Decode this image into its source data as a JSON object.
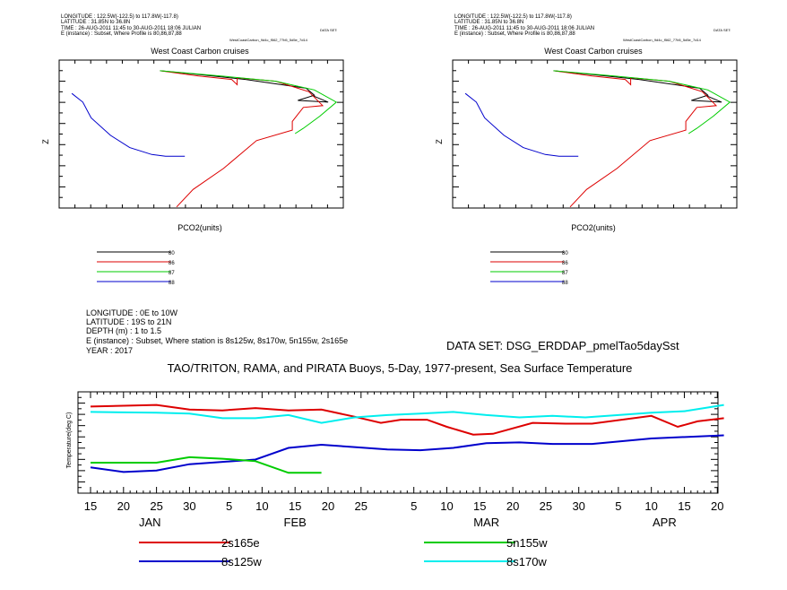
{
  "colors": {
    "black": "#000000",
    "red": "#dd0000",
    "green": "#00cc00",
    "blue": "#0000cc",
    "cyan": "#00eeee"
  },
  "chart_data": [
    {
      "type": "line",
      "title": "West Coast Carbon cruises",
      "header": [
        "LONGITUDE : 122.5W(-122.5) to 117.8W(-117.8)",
        "LATITUDE : 31.85N to 36.8N",
        "TIME : 26-AUG-2011 11:45 to 30-AUG-2011 18:06 JULIAN",
        "E (instance) : Subset, Where Profile is 80,86,87,88"
      ],
      "header_dataset": "DATA SET:",
      "header_dataset_name": "WestCoastCarbon_9d4c_f562_77b5_5d5e_7d14",
      "xlabel": "PCO2(units)",
      "ylabel": "Z",
      "series": [
        {
          "name": "80",
          "color": "black",
          "points": [
            [
              0.34,
              0.02
            ],
            [
              0.47,
              0.04
            ],
            [
              0.65,
              0.07
            ],
            [
              0.87,
              0.12
            ],
            [
              0.9,
              0.16
            ],
            [
              0.84,
              0.19
            ],
            [
              0.95,
              0.2
            ],
            [
              0.89,
              0.16
            ]
          ]
        },
        {
          "name": "86",
          "color": "red",
          "points": [
            [
              0.34,
              0.02
            ],
            [
              0.48,
              0.05
            ],
            [
              0.6,
              0.07
            ],
            [
              0.62,
              0.1
            ],
            [
              0.62,
              0.06
            ],
            [
              0.76,
              0.08
            ],
            [
              0.88,
              0.14
            ],
            [
              0.93,
              0.22
            ],
            [
              0.86,
              0.23
            ],
            [
              0.82,
              0.31
            ],
            [
              0.82,
              0.36
            ],
            [
              0.69,
              0.42
            ],
            [
              0.57,
              0.58
            ],
            [
              0.46,
              0.7
            ],
            [
              0.4,
              0.8
            ]
          ]
        },
        {
          "name": "87",
          "color": "green",
          "points": [
            [
              0.34,
              0.02
            ],
            [
              0.56,
              0.05
            ],
            [
              0.76,
              0.08
            ],
            [
              0.9,
              0.13
            ],
            [
              0.98,
              0.2
            ],
            [
              0.92,
              0.28
            ],
            [
              0.86,
              0.35
            ],
            [
              0.83,
              0.38
            ]
          ]
        },
        {
          "name": "88",
          "color": "blue",
          "points": [
            [
              0.02,
              0.15
            ],
            [
              0.06,
              0.2
            ],
            [
              0.09,
              0.29
            ],
            [
              0.16,
              0.39
            ],
            [
              0.23,
              0.46
            ],
            [
              0.31,
              0.5
            ],
            [
              0.36,
              0.51
            ],
            [
              0.43,
              0.51
            ]
          ]
        }
      ]
    },
    {
      "type": "line",
      "title": "West Coast Carbon cruises",
      "header": [
        "LONGITUDE : 122.5W(-122.5) to 117.8W(-117.8)",
        "LATITUDE : 31.85N to 36.8N",
        "TIME : 26-AUG-2011 11:45 to 30-AUG-2011 18:06 JULIAN",
        "E (instance) : Subset, Where Profile is 80,86,87,88"
      ],
      "header_dataset": "DATA SET:",
      "header_dataset_name": "WestCoastCarbon_9d4c_f562_77b5_5d5e_7d14",
      "xlabel": "PCO2(units)",
      "ylabel": "Z",
      "series": [
        {
          "name": "80",
          "color": "black",
          "points": [
            [
              0.34,
              0.02
            ],
            [
              0.47,
              0.04
            ],
            [
              0.65,
              0.07
            ],
            [
              0.87,
              0.12
            ],
            [
              0.9,
              0.16
            ],
            [
              0.84,
              0.19
            ],
            [
              0.95,
              0.2
            ],
            [
              0.89,
              0.16
            ]
          ]
        },
        {
          "name": "86",
          "color": "red",
          "points": [
            [
              0.34,
              0.02
            ],
            [
              0.48,
              0.05
            ],
            [
              0.6,
              0.07
            ],
            [
              0.62,
              0.1
            ],
            [
              0.62,
              0.06
            ],
            [
              0.76,
              0.08
            ],
            [
              0.88,
              0.14
            ],
            [
              0.93,
              0.22
            ],
            [
              0.86,
              0.23
            ],
            [
              0.82,
              0.31
            ],
            [
              0.82,
              0.36
            ],
            [
              0.69,
              0.42
            ],
            [
              0.57,
              0.58
            ],
            [
              0.46,
              0.7
            ],
            [
              0.4,
              0.8
            ]
          ]
        },
        {
          "name": "87",
          "color": "green",
          "points": [
            [
              0.34,
              0.02
            ],
            [
              0.56,
              0.05
            ],
            [
              0.76,
              0.08
            ],
            [
              0.9,
              0.13
            ],
            [
              0.98,
              0.2
            ],
            [
              0.92,
              0.28
            ],
            [
              0.86,
              0.35
            ],
            [
              0.83,
              0.38
            ]
          ]
        },
        {
          "name": "88",
          "color": "blue",
          "points": [
            [
              0.02,
              0.15
            ],
            [
              0.06,
              0.2
            ],
            [
              0.09,
              0.29
            ],
            [
              0.16,
              0.39
            ],
            [
              0.23,
              0.46
            ],
            [
              0.31,
              0.5
            ],
            [
              0.36,
              0.51
            ],
            [
              0.43,
              0.51
            ]
          ]
        }
      ]
    },
    {
      "type": "line",
      "title": "TAO/TRITON, RAMA, and PIRATA Buoys, 5-Day, 1977-present, Sea Surface Temperature",
      "header": [
        "LONGITUDE : 0E to 10W",
        "LATITUDE : 19S to 21N",
        "DEPTH (m) : 1 to 1.5",
        "E (instance) : Subset, Where station is 8s125w, 8s170w, 5n155w, 2s165e",
        "YEAR : 2017"
      ],
      "dataset": "DATA SET: DSG_ERDDAP_pmelTao5daySst",
      "ylabel": "Temperature(deg C)",
      "x_day_range": [
        15,
        112
      ],
      "x_ticks": [
        {
          "day": 15,
          "label": "15"
        },
        {
          "day": 20,
          "label": "20"
        },
        {
          "day": 25,
          "label": "25"
        },
        {
          "day": 30,
          "label": "30"
        },
        {
          "day": 36,
          "label": "5"
        },
        {
          "day": 41,
          "label": "10"
        },
        {
          "day": 46,
          "label": "15"
        },
        {
          "day": 51,
          "label": "20"
        },
        {
          "day": 56,
          "label": "25"
        },
        {
          "day": 64,
          "label": "5"
        },
        {
          "day": 69,
          "label": "10"
        },
        {
          "day": 74,
          "label": "15"
        },
        {
          "day": 79,
          "label": "20"
        },
        {
          "day": 84,
          "label": "25"
        },
        {
          "day": 89,
          "label": "30"
        },
        {
          "day": 95,
          "label": "5"
        },
        {
          "day": 100,
          "label": "10"
        },
        {
          "day": 105,
          "label": "15"
        },
        {
          "day": 110,
          "label": "20"
        }
      ],
      "months": [
        {
          "day": 24,
          "label": "JAN"
        },
        {
          "day": 46,
          "label": "FEB"
        },
        {
          "day": 75,
          "label": "MAR"
        },
        {
          "day": 102,
          "label": "APR"
        }
      ],
      "y_range": [
        0,
        1
      ],
      "series": [
        {
          "name": "2s165e",
          "color": "red",
          "points": [
            [
              15,
              0.05
            ],
            [
              20,
              0.04
            ],
            [
              25,
              0.03
            ],
            [
              30,
              0.09
            ],
            [
              35,
              0.1
            ],
            [
              40,
              0.07
            ],
            [
              45,
              0.1
            ],
            [
              50,
              0.09
            ],
            [
              55,
              0.18
            ],
            [
              59,
              0.26
            ],
            [
              62,
              0.22
            ],
            [
              66,
              0.22
            ],
            [
              69,
              0.31
            ],
            [
              73,
              0.41
            ],
            [
              76,
              0.4
            ],
            [
              82,
              0.26
            ],
            [
              87,
              0.27
            ],
            [
              91,
              0.27
            ],
            [
              100,
              0.17
            ],
            [
              104,
              0.31
            ],
            [
              107,
              0.24
            ],
            [
              111,
              0.2
            ]
          ]
        },
        {
          "name": "8s125w",
          "color": "blue",
          "points": [
            [
              15,
              0.83
            ],
            [
              20,
              0.89
            ],
            [
              25,
              0.87
            ],
            [
              30,
              0.79
            ],
            [
              35,
              0.76
            ],
            [
              40,
              0.73
            ],
            [
              45,
              0.58
            ],
            [
              50,
              0.54
            ],
            [
              55,
              0.57
            ],
            [
              60,
              0.6
            ],
            [
              65,
              0.61
            ],
            [
              70,
              0.58
            ],
            [
              75,
              0.52
            ],
            [
              80,
              0.51
            ],
            [
              85,
              0.53
            ],
            [
              91,
              0.53
            ],
            [
              100,
              0.46
            ],
            [
              111,
              0.42
            ]
          ]
        },
        {
          "name": "5n155w",
          "color": "green",
          "points": [
            [
              15,
              0.77
            ],
            [
              25,
              0.77
            ],
            [
              30,
              0.7
            ],
            [
              35,
              0.72
            ],
            [
              40,
              0.75
            ],
            [
              45,
              0.9
            ],
            [
              50,
              0.9
            ]
          ]
        },
        {
          "name": "8s170w",
          "color": "cyan",
          "points": [
            [
              15,
              0.12
            ],
            [
              25,
              0.13
            ],
            [
              30,
              0.14
            ],
            [
              35,
              0.2
            ],
            [
              40,
              0.2
            ],
            [
              45,
              0.16
            ],
            [
              50,
              0.26
            ],
            [
              55,
              0.19
            ],
            [
              60,
              0.16
            ],
            [
              65,
              0.14
            ],
            [
              70,
              0.12
            ],
            [
              75,
              0.16
            ],
            [
              80,
              0.19
            ],
            [
              85,
              0.17
            ],
            [
              90,
              0.19
            ],
            [
              95,
              0.16
            ],
            [
              100,
              0.13
            ],
            [
              105,
              0.11
            ],
            [
              111,
              0.03
            ]
          ]
        }
      ]
    }
  ]
}
